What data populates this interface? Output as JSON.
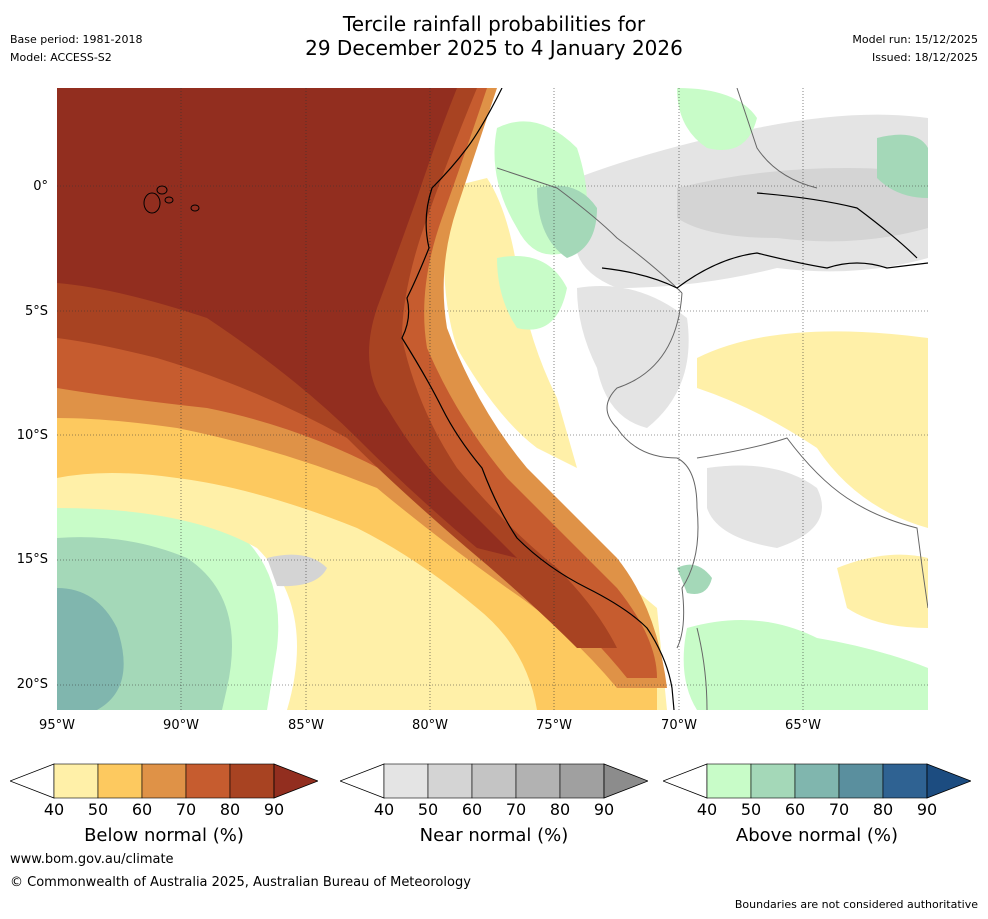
{
  "header": {
    "title_line1": "Tercile rainfall probabilities for",
    "title_line2": "29 December 2025 to 4 January 2026",
    "base_period": "Base period: 1981-2018",
    "model": "Model: ACCESS-S2",
    "model_run": "Model run: 15/12/2025",
    "issued": "Issued: 18/12/2025"
  },
  "map": {
    "lat_labels": [
      "0°",
      "5°S",
      "10°S",
      "15°S",
      "20°S"
    ],
    "lon_labels": [
      "95°W",
      "90°W",
      "85°W",
      "80°W",
      "75°W",
      "70°W",
      "65°W"
    ]
  },
  "colorbars": [
    {
      "title": "Below normal (%)",
      "ticks": [
        "40",
        "50",
        "60",
        "70",
        "80",
        "90"
      ],
      "colors": [
        "#fff0a8",
        "#fdc95f",
        "#df9247",
        "#c65c2f",
        "#a84322",
        "#922e1f"
      ]
    },
    {
      "title": "Near normal (%)",
      "ticks": [
        "40",
        "50",
        "60",
        "70",
        "80",
        "90"
      ],
      "colors": [
        "#e4e4e4",
        "#d4d4d4",
        "#c4c4c4",
        "#b2b2b2",
        "#a0a0a0",
        "#8c8c8c"
      ]
    },
    {
      "title": "Above normal (%)",
      "ticks": [
        "40",
        "50",
        "60",
        "70",
        "80",
        "90"
      ],
      "colors": [
        "#c8fcc8",
        "#a4d8b8",
        "#80b6ae",
        "#5a8f9e",
        "#2f6292",
        "#1c4c80"
      ]
    }
  ],
  "footer": {
    "website": "www.bom.gov.au/climate",
    "copyright": "© Commonwealth of Australia 2025, Australian Bureau of Meteorology",
    "disclaimer": "Boundaries are not considered authoritative"
  }
}
